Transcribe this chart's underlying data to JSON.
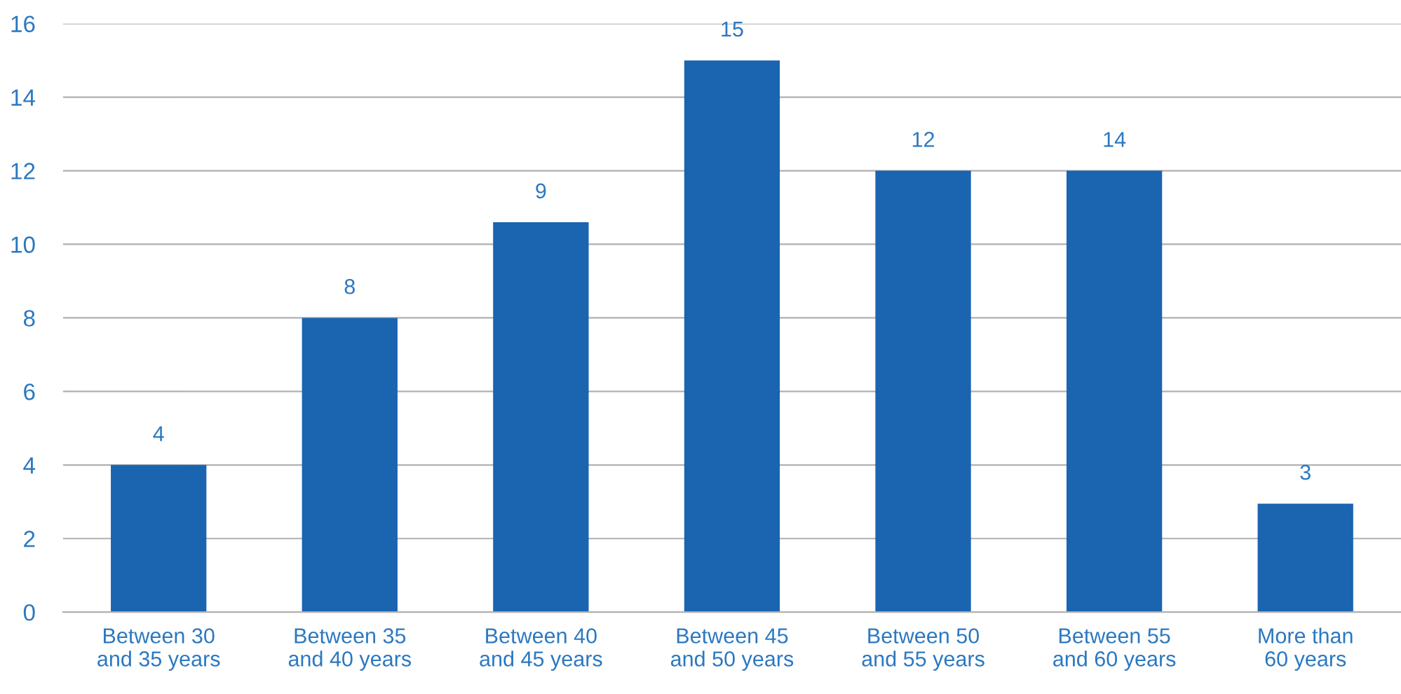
{
  "chart_data": {
    "type": "bar",
    "categories": [
      "Between 30\nand 35 years",
      "Between 35\nand 40 years",
      "Between 40\nand 45 years",
      "Between 45\nand 50 years",
      "Between 50\nand 55 years",
      "Between 55\nand 60 years",
      "More than\n60 years"
    ],
    "values": [
      4,
      8,
      10.6,
      15,
      12,
      12,
      2.95
    ],
    "annotations": [
      {
        "text": "4",
        "x": "Between 30\nand 35 years",
        "y": 4
      },
      {
        "text": "8",
        "x": "Between 35\nand 40 years",
        "y": 8
      },
      {
        "text": "9",
        "x": "Between 40\nand 45 years",
        "y": 10.6
      },
      {
        "text": "15",
        "x": "Between 45\nand 50 years",
        "y": 15
      },
      {
        "text": "12",
        "x": "Between 50\nand 55 years",
        "y": 12
      },
      {
        "text": "14",
        "x": "Between 55\nand 60 years",
        "y": 12
      },
      {
        "text": "3",
        "x": "More than\n60 years",
        "y": 2.95
      }
    ],
    "color": "#1a64b0",
    "ylim": [
      0,
      16
    ],
    "yticks": [
      0,
      2,
      4,
      6,
      8,
      10,
      12,
      14,
      16
    ],
    "grid": "y"
  }
}
